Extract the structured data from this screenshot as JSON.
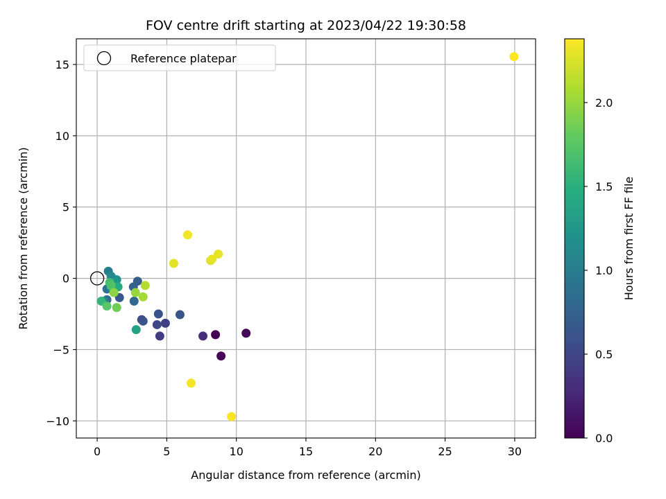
{
  "chart_data": {
    "type": "scatter",
    "title": "FOV centre drift starting at 2023/04/22 19:30:58",
    "xlabel": "Angular distance from reference (arcmin)",
    "ylabel": "Rotation from reference (arcmin)",
    "xlim": [
      -1.5,
      31.5
    ],
    "ylim": [
      -11.2,
      16.8
    ],
    "xticks": [
      0,
      5,
      10,
      15,
      20,
      25,
      30
    ],
    "yticks": [
      -10,
      -5,
      0,
      5,
      10,
      15
    ],
    "xtick_labels": [
      "0",
      "5",
      "10",
      "15",
      "20",
      "25",
      "30"
    ],
    "ytick_labels": [
      "−10",
      "−5",
      "0",
      "5",
      "10",
      "15"
    ],
    "grid": true,
    "legend": {
      "location": "top-left",
      "entries": [
        {
          "label": "Reference platepar",
          "marker": "open-circle"
        }
      ]
    },
    "reference_point": {
      "x": 0,
      "y": 0
    },
    "colorbar": {
      "label": "Hours from first FF file",
      "colormap": "viridis",
      "range": [
        0.0,
        2.38
      ],
      "ticks": [
        0.0,
        0.5,
        1.0,
        1.5,
        2.0
      ],
      "tick_labels": [
        "0.0",
        "0.5",
        "1.0",
        "1.5",
        "2.0"
      ]
    },
    "points": [
      {
        "x": 8.5,
        "y": -3.95,
        "c": 0.0
      },
      {
        "x": 8.9,
        "y": -5.45,
        "c": 0.02
      },
      {
        "x": 10.7,
        "y": -3.85,
        "c": 0.04
      },
      {
        "x": 7.6,
        "y": -4.05,
        "c": 0.3
      },
      {
        "x": 4.5,
        "y": -4.05,
        "c": 0.42
      },
      {
        "x": 4.9,
        "y": -3.15,
        "c": 0.45
      },
      {
        "x": 4.3,
        "y": -3.25,
        "c": 0.5
      },
      {
        "x": 3.2,
        "y": -2.9,
        "c": 0.55
      },
      {
        "x": 3.3,
        "y": -3.0,
        "c": 0.6
      },
      {
        "x": 4.4,
        "y": -2.5,
        "c": 0.6
      },
      {
        "x": 5.95,
        "y": -2.55,
        "c": 0.62
      },
      {
        "x": 1.6,
        "y": -1.35,
        "c": 0.65
      },
      {
        "x": 2.9,
        "y": -0.2,
        "c": 0.7
      },
      {
        "x": 2.6,
        "y": -0.6,
        "c": 0.75
      },
      {
        "x": 2.65,
        "y": -1.6,
        "c": 0.8
      },
      {
        "x": 0.7,
        "y": -1.5,
        "c": 0.85
      },
      {
        "x": 0.7,
        "y": -0.75,
        "c": 0.9
      },
      {
        "x": 0.8,
        "y": 0.5,
        "c": 1.0
      },
      {
        "x": 0.5,
        "y": -1.6,
        "c": 1.05
      },
      {
        "x": 1.0,
        "y": 0.15,
        "c": 1.1
      },
      {
        "x": 1.4,
        "y": -0.1,
        "c": 1.2
      },
      {
        "x": 1.2,
        "y": -0.3,
        "c": 1.25
      },
      {
        "x": 2.8,
        "y": -3.6,
        "c": 1.35
      },
      {
        "x": 1.0,
        "y": -0.6,
        "c": 1.4
      },
      {
        "x": 1.5,
        "y": -0.6,
        "c": 1.45
      },
      {
        "x": 0.3,
        "y": -1.6,
        "c": 1.55
      },
      {
        "x": 0.9,
        "y": -0.3,
        "c": 1.65
      },
      {
        "x": 1.0,
        "y": -0.5,
        "c": 1.7
      },
      {
        "x": 0.7,
        "y": -1.95,
        "c": 1.75
      },
      {
        "x": 1.4,
        "y": -2.05,
        "c": 1.85
      },
      {
        "x": 1.2,
        "y": -1.0,
        "c": 1.95
      },
      {
        "x": 2.75,
        "y": -1.0,
        "c": 2.0
      },
      {
        "x": 3.3,
        "y": -1.3,
        "c": 2.05
      },
      {
        "x": 3.45,
        "y": -0.5,
        "c": 2.1
      },
      {
        "x": 8.15,
        "y": 1.25,
        "c": 2.25
      },
      {
        "x": 5.5,
        "y": 1.05,
        "c": 2.28
      },
      {
        "x": 8.7,
        "y": 1.7,
        "c": 2.3
      },
      {
        "x": 8.25,
        "y": 1.35,
        "c": 2.3
      },
      {
        "x": 6.5,
        "y": 3.05,
        "c": 2.33
      },
      {
        "x": 6.75,
        "y": -7.35,
        "c": 2.34
      },
      {
        "x": 9.65,
        "y": -9.7,
        "c": 2.36
      },
      {
        "x": 29.95,
        "y": 15.55,
        "c": 2.38
      }
    ]
  }
}
